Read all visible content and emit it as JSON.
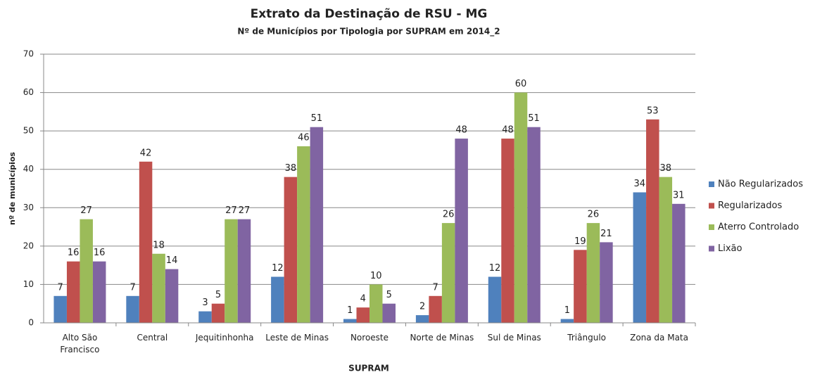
{
  "chart_data": {
    "type": "bar",
    "title": "Extrato da Destinação de RSU - MG",
    "subtitle": "Nº de Municípios por Tipologia por SUPRAM em 2014_2",
    "x_label": "SUPRAM",
    "y_label": "nº de municípios",
    "categories": [
      "Alto São Francisco",
      "Central",
      "Jequitinhonha",
      "Leste de Minas",
      "Noroeste",
      "Norte de Minas",
      "Sul de Minas",
      "Triângulo",
      "Zona da Mata"
    ],
    "series": [
      {
        "name": "Não Regularizados",
        "color": "#4f81bd",
        "values": [
          7,
          7,
          3,
          12,
          1,
          2,
          12,
          1,
          34
        ]
      },
      {
        "name": "Regularizados",
        "color": "#c0504d",
        "values": [
          16,
          42,
          5,
          38,
          4,
          7,
          48,
          19,
          53
        ]
      },
      {
        "name": "Aterro Controlado",
        "color": "#9bbb59",
        "values": [
          27,
          18,
          27,
          46,
          10,
          26,
          60,
          26,
          38
        ]
      },
      {
        "name": "Lixão",
        "color": "#8064a2",
        "values": [
          16,
          14,
          27,
          51,
          5,
          48,
          51,
          21,
          31
        ]
      }
    ],
    "ylim": [
      0,
      70
    ],
    "yticks": [
      0,
      10,
      20,
      30,
      40,
      50,
      60,
      70
    ],
    "grid": true,
    "legend": "right"
  }
}
